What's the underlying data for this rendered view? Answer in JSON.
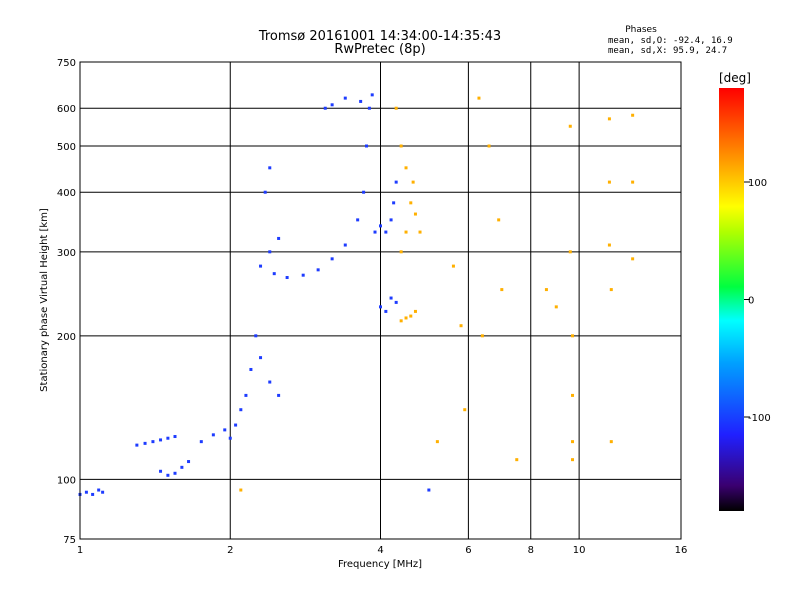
{
  "chart_data": {
    "type": "scatter",
    "title": "Tromsø 20161001 14:34:00-14:35:43",
    "subtitle": "RwPretec (8p)",
    "xlabel": "Frequency [MHz]",
    "ylabel": "Stationary phase Virtual Height [km]",
    "x_scale": "log",
    "y_scale": "log",
    "xlim": [
      1,
      16
    ],
    "ylim": [
      75,
      750
    ],
    "x_ticks": [
      "1",
      "2",
      "4",
      "6",
      "8",
      "10",
      "16"
    ],
    "x_tick_values": [
      1,
      2,
      4,
      6,
      8,
      10,
      16
    ],
    "x_grid_values": [
      1,
      2,
      4,
      6,
      8,
      10,
      16
    ],
    "y_ticks": [
      "75",
      "100",
      "200",
      "300",
      "400",
      "500",
      "600",
      "750"
    ],
    "y_tick_values": [
      75,
      100,
      200,
      300,
      400,
      500,
      600,
      750
    ],
    "grid": true,
    "info": {
      "title": "Phases",
      "line_o": "mean, sd,O: -92.4, 16.9",
      "line_x": "mean, sd,X:  95.9, 24.7"
    },
    "colorbar": {
      "label": "[deg]",
      "range": [
        -180,
        180
      ],
      "tick_labels": [
        "100",
        "0",
        "-100"
      ],
      "tick_values": [
        100,
        0,
        -100
      ],
      "colormap": "rainbow (black-purple-blue-cyan-green-yellow-orange-red)"
    },
    "series": [
      {
        "mode": "O",
        "phase_deg": -92.4,
        "color": "#1e3cff",
        "points": [
          [
            1.0,
            93
          ],
          [
            1.03,
            94
          ],
          [
            1.06,
            93
          ],
          [
            1.09,
            95
          ],
          [
            1.11,
            94
          ],
          [
            1.3,
            118
          ],
          [
            1.35,
            119
          ],
          [
            1.4,
            120
          ],
          [
            1.45,
            121
          ],
          [
            1.5,
            122
          ],
          [
            1.55,
            123
          ],
          [
            1.45,
            104
          ],
          [
            1.5,
            102
          ],
          [
            1.55,
            103
          ],
          [
            1.6,
            106
          ],
          [
            1.65,
            109
          ],
          [
            1.75,
            120
          ],
          [
            1.85,
            124
          ],
          [
            1.95,
            127
          ],
          [
            2.0,
            122
          ],
          [
            2.05,
            130
          ],
          [
            2.1,
            140
          ],
          [
            2.15,
            150
          ],
          [
            2.2,
            170
          ],
          [
            2.25,
            200
          ],
          [
            2.3,
            180
          ],
          [
            2.4,
            160
          ],
          [
            2.5,
            150
          ],
          [
            2.3,
            280
          ],
          [
            2.4,
            300
          ],
          [
            2.5,
            320
          ],
          [
            2.35,
            400
          ],
          [
            2.4,
            450
          ],
          [
            2.45,
            270
          ],
          [
            2.6,
            265
          ],
          [
            2.8,
            268
          ],
          [
            3.0,
            275
          ],
          [
            3.2,
            290
          ],
          [
            3.4,
            310
          ],
          [
            3.6,
            350
          ],
          [
            3.7,
            400
          ],
          [
            3.75,
            500
          ],
          [
            3.8,
            600
          ],
          [
            3.85,
            640
          ],
          [
            3.65,
            620
          ],
          [
            3.4,
            630
          ],
          [
            3.9,
            330
          ],
          [
            4.0,
            340
          ],
          [
            4.1,
            330
          ],
          [
            4.2,
            350
          ],
          [
            4.25,
            380
          ],
          [
            4.3,
            420
          ],
          [
            4.0,
            230
          ],
          [
            4.1,
            225
          ],
          [
            4.2,
            240
          ],
          [
            4.3,
            235
          ],
          [
            3.1,
            600
          ],
          [
            3.2,
            610
          ],
          [
            5.0,
            95
          ]
        ]
      },
      {
        "mode": "X",
        "phase_deg": 95.9,
        "color": "#ffb000",
        "points": [
          [
            4.4,
            300
          ],
          [
            4.5,
            330
          ],
          [
            4.6,
            380
          ],
          [
            4.65,
            420
          ],
          [
            4.7,
            360
          ],
          [
            4.8,
            330
          ],
          [
            4.4,
            215
          ],
          [
            4.5,
            218
          ],
          [
            4.6,
            220
          ],
          [
            4.7,
            225
          ],
          [
            4.3,
            600
          ],
          [
            4.4,
            500
          ],
          [
            4.5,
            450
          ],
          [
            5.6,
            280
          ],
          [
            5.8,
            210
          ],
          [
            6.3,
            630
          ],
          [
            6.4,
            200
          ],
          [
            6.6,
            500
          ],
          [
            6.9,
            350
          ],
          [
            7.0,
            250
          ],
          [
            8.6,
            250
          ],
          [
            9.0,
            230
          ],
          [
            9.6,
            550
          ],
          [
            9.6,
            300
          ],
          [
            9.7,
            200
          ],
          [
            9.7,
            150
          ],
          [
            9.7,
            120
          ],
          [
            9.7,
            110
          ],
          [
            11.5,
            570
          ],
          [
            11.5,
            420
          ],
          [
            11.5,
            310
          ],
          [
            11.6,
            250
          ],
          [
            11.6,
            120
          ],
          [
            12.8,
            580
          ],
          [
            12.8,
            420
          ],
          [
            12.8,
            290
          ],
          [
            5.2,
            120
          ],
          [
            5.9,
            140
          ],
          [
            7.5,
            110
          ],
          [
            2.1,
            95
          ]
        ]
      }
    ]
  }
}
